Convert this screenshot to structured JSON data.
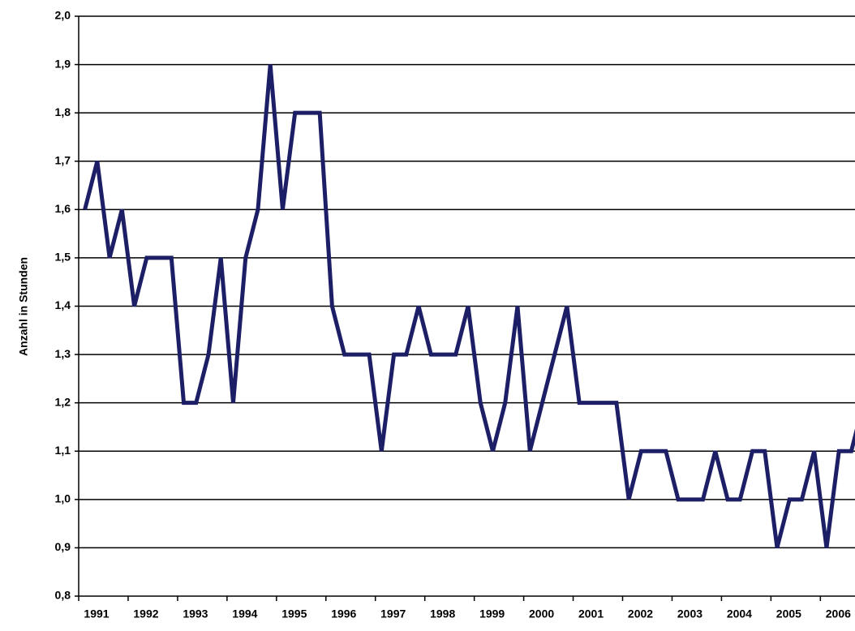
{
  "chart_data": {
    "type": "line",
    "y_label": "Anzahl in Stunden",
    "x": [
      1991.125,
      1991.375,
      1991.625,
      1991.875,
      1992.125,
      1992.375,
      1992.625,
      1992.875,
      1993.125,
      1993.375,
      1993.625,
      1993.875,
      1994.125,
      1994.375,
      1994.625,
      1994.875,
      1995.125,
      1995.375,
      1995.625,
      1995.875,
      1996.125,
      1996.375,
      1996.625,
      1996.875,
      1997.125,
      1997.375,
      1997.625,
      1997.875,
      1998.125,
      1998.375,
      1998.625,
      1998.875,
      1999.125,
      1999.375,
      1999.625,
      1999.875,
      2000.125,
      2000.375,
      2000.625,
      2000.875,
      2001.125,
      2001.375,
      2001.625,
      2001.875,
      2002.125,
      2002.375,
      2002.625,
      2002.875,
      2003.125,
      2003.375,
      2003.625,
      2003.875,
      2004.125,
      2004.375,
      2004.625,
      2004.875,
      2005.125,
      2005.375,
      2005.625,
      2005.875,
      2006.125,
      2006.375,
      2006.625,
      2006.875
    ],
    "series": [
      {
        "color": "#1c1f66",
        "values": [
          1.6,
          1.7,
          1.5,
          1.6,
          1.4,
          1.5,
          1.5,
          1.5,
          1.2,
          1.2,
          1.3,
          1.5,
          1.2,
          1.5,
          1.6,
          1.9,
          1.6,
          1.8,
          1.8,
          1.8,
          1.4,
          1.3,
          1.3,
          1.3,
          1.1,
          1.3,
          1.3,
          1.4,
          1.3,
          1.3,
          1.3,
          1.4,
          1.2,
          1.1,
          1.2,
          1.4,
          1.1,
          1.2,
          1.3,
          1.4,
          1.2,
          1.2,
          1.2,
          1.2,
          1.0,
          1.1,
          1.1,
          1.1,
          1.0,
          1.0,
          1.0,
          1.1,
          1.0,
          1.0,
          1.1,
          1.1,
          0.9,
          1.0,
          1.0,
          1.1,
          0.9,
          1.1,
          1.1,
          1.2
        ]
      }
    ],
    "xlim": [
      1991,
      2006.7
    ],
    "xticks": [
      1991,
      1992,
      1993,
      1994,
      1995,
      1996,
      1997,
      1998,
      1999,
      2000,
      2001,
      2002,
      2003,
      2004,
      2005,
      2006
    ],
    "ylim": [
      0.8,
      2.0
    ],
    "yticks": [
      {
        "value": 0.8,
        "label": "0,8"
      },
      {
        "value": 0.9,
        "label": "0,9"
      },
      {
        "value": 1.0,
        "label": "1,0"
      },
      {
        "value": 1.1,
        "label": "1,1"
      },
      {
        "value": 1.2,
        "label": "1,2"
      },
      {
        "value": 1.3,
        "label": "1,3"
      },
      {
        "value": 1.4,
        "label": "1,4"
      },
      {
        "value": 1.5,
        "label": "1,5"
      },
      {
        "value": 1.6,
        "label": "1,6"
      },
      {
        "value": 1.7,
        "label": "1,7"
      },
      {
        "value": 1.8,
        "label": "1,8"
      },
      {
        "value": 1.9,
        "label": "1,9"
      },
      {
        "value": 2.0,
        "label": "2,0"
      }
    ],
    "grid": true
  }
}
